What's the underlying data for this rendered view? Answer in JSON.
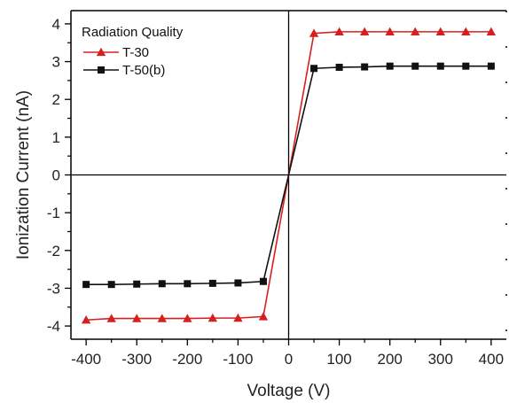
{
  "chart_data": {
    "type": "line",
    "title": "",
    "xlabel": "Voltage (V)",
    "ylabel": "Ionization Current (nA)",
    "xlim": [
      -430,
      430
    ],
    "ylim": [
      -4.35,
      4.35
    ],
    "x_ticks": [
      -400,
      -300,
      -200,
      -100,
      0,
      100,
      200,
      300,
      400
    ],
    "x_tick_labels": [
      "-400",
      "-300",
      "-200",
      "-100",
      "0",
      "100",
      "200",
      "300",
      "400"
    ],
    "y_ticks": [
      -4,
      -3,
      -2,
      -1,
      0,
      1,
      2,
      3,
      4
    ],
    "y_tick_labels": [
      "-4",
      "-3",
      "-2",
      "-1",
      "0",
      "1",
      "2",
      "3",
      "4"
    ],
    "grid": false,
    "legend": {
      "title": "Radiation Quality",
      "placement": "top-left"
    },
    "series": [
      {
        "name": "T-30",
        "color": "#d62020",
        "marker": "triangle",
        "x": [
          -400,
          -350,
          -300,
          -250,
          -200,
          -150,
          -100,
          -50,
          0,
          50,
          100,
          150,
          200,
          250,
          300,
          350,
          400
        ],
        "y": [
          -3.84,
          -3.8,
          -3.8,
          -3.8,
          -3.8,
          -3.79,
          -3.79,
          -3.75,
          0.0,
          3.75,
          3.79,
          3.79,
          3.79,
          3.79,
          3.79,
          3.79,
          3.79
        ]
      },
      {
        "name": "T-50(b)",
        "color": "#111111",
        "marker": "square",
        "x": [
          -400,
          -350,
          -300,
          -250,
          -200,
          -150,
          -100,
          -50,
          0,
          50,
          100,
          150,
          200,
          250,
          300,
          350,
          400
        ],
        "y": [
          -2.9,
          -2.9,
          -2.89,
          -2.88,
          -2.88,
          -2.87,
          -2.86,
          -2.82,
          0.0,
          2.82,
          2.85,
          2.86,
          2.88,
          2.88,
          2.88,
          2.88,
          2.88
        ]
      }
    ]
  }
}
